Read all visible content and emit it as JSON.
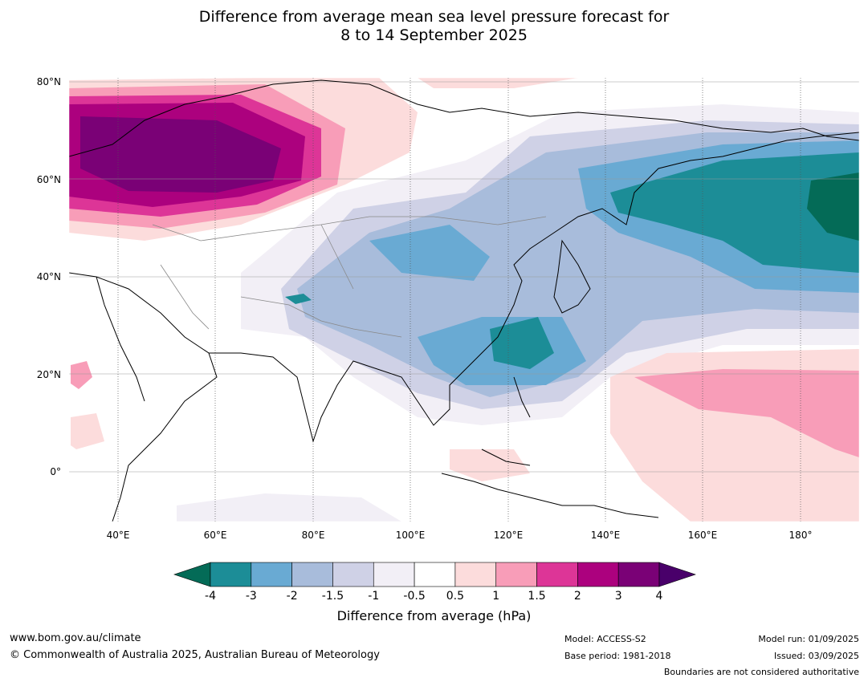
{
  "title": {
    "line1": "Difference from average mean sea level pressure forecast for",
    "line2": "8 to 14 September 2025"
  },
  "map": {
    "lat_labels": [
      "80°N",
      "60°N",
      "40°N",
      "20°N",
      "0°"
    ],
    "lon_labels": [
      "40°E",
      "60°E",
      "80°E",
      "100°E",
      "120°E",
      "140°E",
      "160°E",
      "180°"
    ],
    "lat_range": [
      -10,
      80
    ],
    "lon_range": [
      30,
      192
    ]
  },
  "colorbar": {
    "title": "Difference from average (hPa)",
    "ticks": [
      "-4",
      "-3",
      "-2",
      "-1.5",
      "-1",
      "-0.5",
      "0.5",
      "1",
      "1.5",
      "2",
      "3",
      "4"
    ],
    "colors": [
      "#046b57",
      "#1c8d97",
      "#69aad3",
      "#a8bcdb",
      "#cfd1e6",
      "#f2eff6",
      "#ffffff",
      "#fcdcdc",
      "#f89db8",
      "#dd3597",
      "#ac017e",
      "#7a0176",
      "#49006a"
    ]
  },
  "footer": {
    "url": "www.bom.gov.au/climate",
    "copyright": "© Commonwealth of Australia 2025, Australian Bureau of Meteorology",
    "model": "Model: ACCESS-S2",
    "base_period": "Base period: 1981-2018",
    "model_run": "Model run: 01/09/2025",
    "issued": "Issued: 03/09/2025",
    "boundaries": "Boundaries are not considered authoritative"
  }
}
